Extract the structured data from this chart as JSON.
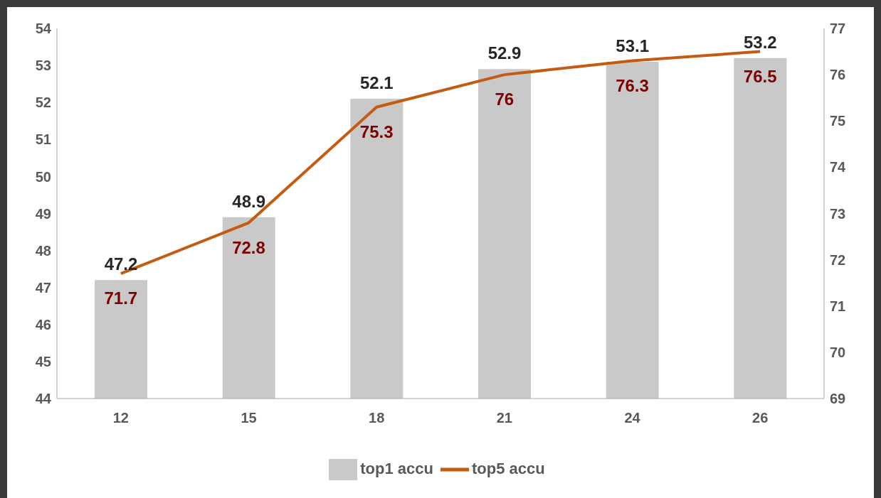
{
  "chart_data": {
    "type": "bar",
    "categories": [
      "12",
      "15",
      "18",
      "21",
      "24",
      "26"
    ],
    "series": [
      {
        "name": "top1 accu",
        "color": "#c9c9c9",
        "values": [
          47.2,
          48.9,
          52.1,
          52.9,
          53.1,
          53.2
        ]
      },
      {
        "name": "top5 accu",
        "type": "line",
        "axis": "y2",
        "color": "#c55a11",
        "values": [
          71.7,
          72.8,
          75.3,
          76,
          76.3,
          76.5
        ]
      }
    ],
    "ylim": [
      44,
      54
    ],
    "yticks": [
      44,
      45,
      46,
      47,
      48,
      49,
      50,
      51,
      52,
      53,
      54
    ],
    "y2lim": [
      69,
      77
    ],
    "y2ticks": [
      69,
      70,
      71,
      72,
      73,
      74,
      75,
      76,
      77
    ],
    "data_labels": true,
    "legend": "bottom",
    "grid": false,
    "marker": "none"
  }
}
